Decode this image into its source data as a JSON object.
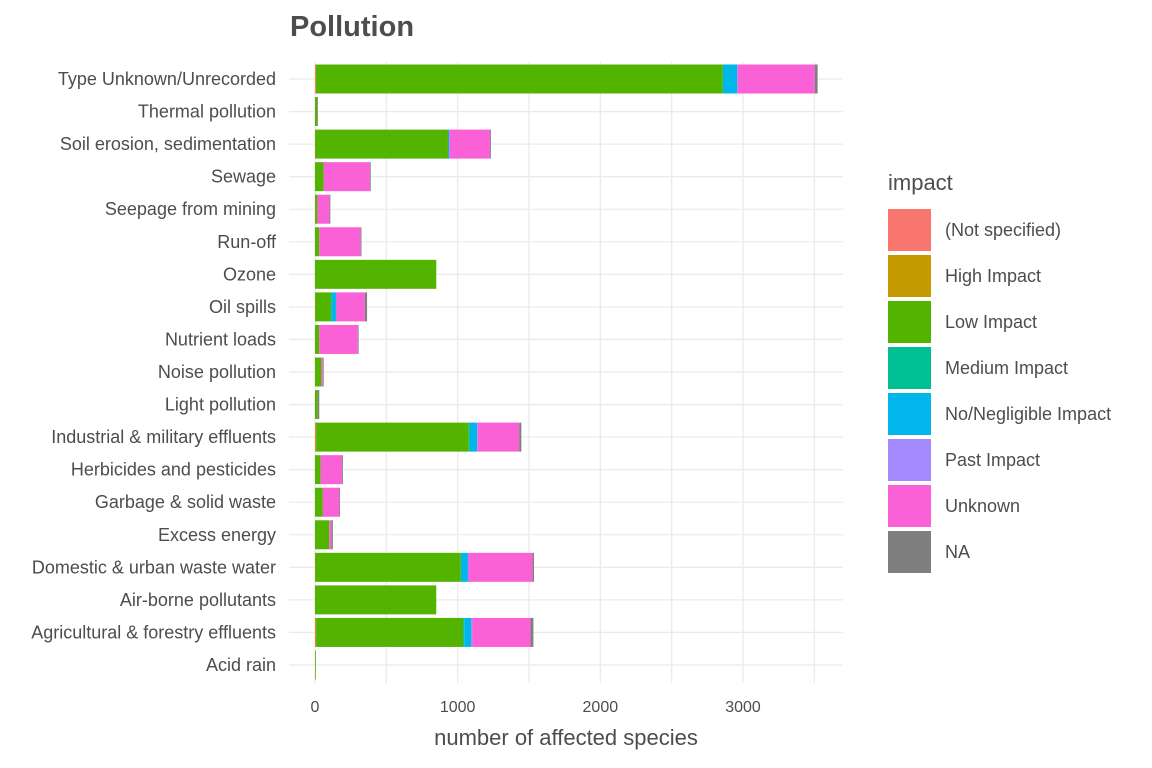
{
  "chart_data": {
    "type": "bar",
    "orientation": "horizontal",
    "stacked": true,
    "title": "Pollution",
    "xlabel": "number of affected species",
    "ylabel": "",
    "xlim": [
      -180,
      3700
    ],
    "xticks": [
      0,
      1000,
      2000,
      3000
    ],
    "grid": true,
    "legend_title": "impact",
    "legend_position": "right",
    "categories": [
      "Type Unknown/Unrecorded",
      "Thermal pollution",
      "Soil erosion, sedimentation",
      "Sewage",
      "Seepage from mining",
      "Run-off",
      "Ozone",
      "Oil spills",
      "Nutrient loads",
      "Noise pollution",
      "Light pollution",
      "Industrial & military effluents",
      "Herbicides and pesticides",
      "Garbage & solid waste",
      "Excess energy",
      "Domestic & urban waste water",
      "Air-borne pollutants",
      "Agricultural & forestry effluents",
      "Acid rain"
    ],
    "series": [
      {
        "name": "(Not specified)",
        "color": "#F8766D",
        "values": [
          5,
          0,
          0,
          0,
          0,
          0,
          0,
          0,
          0,
          0,
          0,
          3,
          0,
          0,
          0,
          0,
          0,
          3,
          0
        ]
      },
      {
        "name": "High Impact",
        "color": "#C49A00",
        "values": [
          3,
          0,
          2,
          0,
          2,
          0,
          0,
          2,
          0,
          0,
          0,
          5,
          0,
          0,
          0,
          2,
          0,
          5,
          0
        ]
      },
      {
        "name": "Low Impact",
        "color": "#53B400",
        "values": [
          2850,
          15,
          930,
          60,
          15,
          30,
          850,
          110,
          30,
          45,
          20,
          1070,
          40,
          55,
          100,
          1020,
          850,
          1030,
          3
        ]
      },
      {
        "name": "Medium Impact",
        "color": "#00C094",
        "values": [
          5,
          0,
          3,
          0,
          0,
          0,
          0,
          5,
          0,
          0,
          0,
          8,
          0,
          0,
          0,
          5,
          0,
          8,
          0
        ]
      },
      {
        "name": "No/Negligible Impact",
        "color": "#00B6EB",
        "values": [
          95,
          0,
          5,
          0,
          0,
          0,
          0,
          30,
          0,
          0,
          0,
          50,
          0,
          0,
          0,
          45,
          0,
          50,
          0
        ]
      },
      {
        "name": "Past Impact",
        "color": "#A58AFF",
        "values": [
          5,
          0,
          3,
          0,
          0,
          0,
          0,
          3,
          0,
          0,
          0,
          5,
          0,
          0,
          0,
          3,
          0,
          5,
          0
        ]
      },
      {
        "name": "Unknown",
        "color": "#FB61D7",
        "values": [
          540,
          0,
          285,
          325,
          85,
          290,
          0,
          200,
          270,
          10,
          0,
          290,
          150,
          115,
          15,
          450,
          0,
          410,
          0
        ]
      },
      {
        "name": "NA",
        "color": "#7F7F7F",
        "values": [
          20,
          5,
          5,
          5,
          3,
          3,
          0,
          15,
          3,
          5,
          10,
          15,
          3,
          3,
          10,
          10,
          0,
          20,
          0
        ]
      }
    ]
  }
}
